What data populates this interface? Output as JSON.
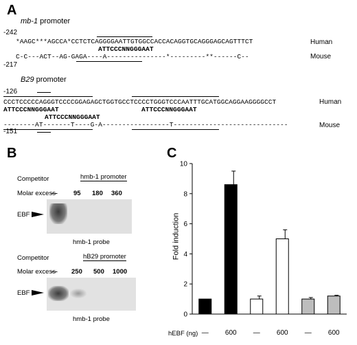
{
  "panelA": {
    "letter": "A",
    "mb1": {
      "title_prefix": "mb-1",
      "title_suffix": " promoter",
      "start_human": "-242",
      "start_mouse": "-217",
      "human_seq": "*AAGC***AGCCA*CCTCTCAGGGGAATTGTGGCCACCACAGGTGCAGGGAGCAGTTTCT",
      "consensus": "ATTCCCNNGGGAAT",
      "mouse_seq": "C-C---ACT--AG-GAGA----A---------------*---------**------C--",
      "human_label": "Human",
      "mouse_label": "Mouse"
    },
    "b29": {
      "title_prefix": "B29",
      "title_suffix": " promoter",
      "start_human": "-126",
      "start_mouse": "-151",
      "human_seq": "CCCTCCCCCAGGGTCCCCGGAGAGCTGGTGCCTCCCCTGGGTCCCAATTTGCATGGCAGGAAGGGGCCT",
      "consensus1": "ATTCCCNNGGGAAT",
      "consensus2": "ATTCCCNNGGGAAT",
      "consensus3": "ATTCCCNNGGGAAT",
      "mouse_seq": "--------AT-------T----G-A-----------------T-----------------------------",
      "human_label": "Human",
      "mouse_label": "Mouse"
    }
  },
  "panelB": {
    "letter": "B",
    "gel1": {
      "competitor_label": "Competitor",
      "competitor_value": "hmb-1 promoter",
      "molar_label": "Molar excess",
      "lanes": [
        "—",
        "95",
        "180",
        "360"
      ],
      "band_label": "EBF",
      "probe_label": "hmb-1 probe"
    },
    "gel2": {
      "competitor_label": "Competitor",
      "competitor_value": "hB29 promoter",
      "molar_label": "Molar excess",
      "lanes": [
        "—",
        "250",
        "500",
        "1000"
      ],
      "band_label": "EBF",
      "probe_label": "hmb-1 probe"
    }
  },
  "panelC": {
    "letter": "C",
    "colors": {
      "black": "#000000",
      "white": "#ffffff",
      "gray": "#bdbdbd"
    },
    "chart_data": {
      "type": "bar",
      "ylabel": "Fold induction",
      "xlabel": "hEBF (ng)",
      "ylim": [
        0,
        10
      ],
      "yticks": [
        0,
        2,
        4,
        6,
        8,
        10
      ],
      "categories": [
        "—",
        "600",
        "—",
        "600",
        "—",
        "600"
      ],
      "values": [
        1.0,
        8.6,
        1.0,
        5.0,
        1.0,
        1.2
      ],
      "errors": [
        0.0,
        0.9,
        0.2,
        0.6,
        0.1,
        0.05
      ],
      "fills": [
        "black",
        "black",
        "white",
        "white",
        "gray",
        "gray"
      ]
    }
  }
}
